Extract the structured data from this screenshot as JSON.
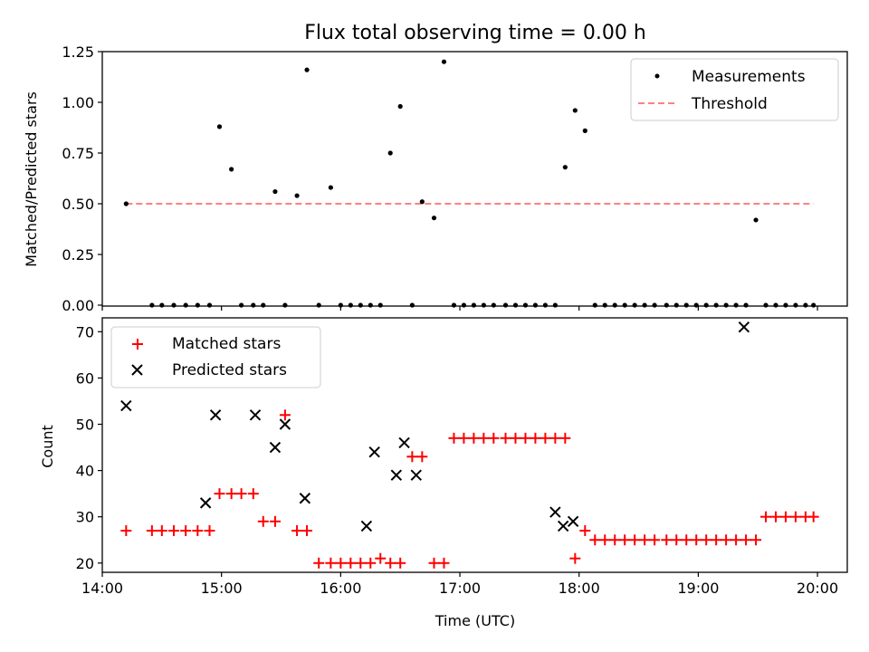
{
  "chart_data": [
    {
      "type": "scatter",
      "title": "Flux total observing time = 0.00 h",
      "xlabel": "",
      "ylabel": "Matched/Predicted stars",
      "ylim": [
        0,
        1.25
      ],
      "yticks": [
        "0.00",
        "0.25",
        "0.50",
        "0.75",
        "1.00",
        "1.25"
      ],
      "ytick_values": [
        0,
        0.25,
        0.5,
        0.75,
        1.0,
        1.25
      ],
      "legend": {
        "placement": "upper right"
      },
      "series": [
        {
          "name": "Measurements",
          "kind": "scatter",
          "color": "#000000",
          "x": [
            "14:12",
            "14:25",
            "14:30",
            "14:36",
            "14:42",
            "14:48",
            "14:54",
            "14:59",
            "15:05",
            "15:10",
            "15:16",
            "15:21",
            "15:27",
            "15:32",
            "15:38",
            "15:43",
            "15:49",
            "15:55",
            "16:00",
            "16:05",
            "16:10",
            "16:15",
            "16:20",
            "16:25",
            "16:30",
            "16:36",
            "16:41",
            "16:47",
            "16:52",
            "16:57",
            "17:02",
            "17:07",
            "17:12",
            "17:17",
            "17:23",
            "17:28",
            "17:33",
            "17:38",
            "17:43",
            "17:48",
            "17:53",
            "17:58",
            "18:03",
            "18:08",
            "18:13",
            "18:18",
            "18:23",
            "18:28",
            "18:33",
            "18:38",
            "18:44",
            "18:49",
            "18:54",
            "18:59",
            "19:04",
            "19:09",
            "19:14",
            "19:19",
            "19:24",
            "19:29",
            "19:34",
            "19:39",
            "19:44",
            "19:49",
            "19:54",
            "19:58"
          ],
          "y": [
            0.5,
            0.0,
            0.0,
            0.0,
            0.0,
            0.0,
            0.0,
            0.88,
            0.67,
            0.0,
            0.0,
            0.0,
            0.56,
            0.0,
            0.54,
            1.16,
            0.0,
            0.58,
            0.0,
            0.0,
            0.0,
            0.0,
            0.0,
            0.75,
            0.98,
            0.0,
            0.51,
            0.43,
            1.2,
            0.0,
            0.0,
            0.0,
            0.0,
            0.0,
            0.0,
            0.0,
            0.0,
            0.0,
            0.0,
            0.0,
            0.68,
            0.96,
            0.86,
            0.0,
            0.0,
            0.0,
            0.0,
            0.0,
            0.0,
            0.0,
            0.0,
            0.0,
            0.0,
            0.0,
            0.0,
            0.0,
            0.0,
            0.0,
            0.0,
            0.42,
            0.0,
            0.0,
            0.0,
            0.0,
            0.0,
            0.0
          ]
        },
        {
          "name": "Threshold",
          "kind": "line",
          "style": "dashed",
          "color": "#ff8080",
          "x": [
            "14:12",
            "19:58"
          ],
          "y": [
            0.5,
            0.5
          ]
        }
      ]
    },
    {
      "type": "scatter",
      "title": "",
      "xlabel": "Time (UTC)",
      "ylabel": "Count",
      "ylim": [
        18,
        73
      ],
      "yticks": [
        "20",
        "30",
        "40",
        "50",
        "60",
        "70"
      ],
      "ytick_values": [
        20,
        30,
        40,
        50,
        60,
        70
      ],
      "xlim": [
        "14:00",
        "20:15"
      ],
      "xticks": [
        "14:00",
        "15:00",
        "16:00",
        "17:00",
        "18:00",
        "19:00",
        "20:00"
      ],
      "legend": {
        "placement": "upper left"
      },
      "series": [
        {
          "name": "Matched stars",
          "marker": "+",
          "color": "#ff0000",
          "points": [
            [
              "14:12",
              27
            ],
            [
              "14:25",
              27
            ],
            [
              "14:30",
              27
            ],
            [
              "14:36",
              27
            ],
            [
              "14:42",
              27
            ],
            [
              "14:48",
              27
            ],
            [
              "14:54",
              27
            ],
            [
              "14:59",
              35
            ],
            [
              "15:05",
              35
            ],
            [
              "15:10",
              35
            ],
            [
              "15:16",
              35
            ],
            [
              "15:21",
              29
            ],
            [
              "15:27",
              29
            ],
            [
              "15:32",
              52
            ],
            [
              "15:38",
              27
            ],
            [
              "15:43",
              27
            ],
            [
              "15:49",
              20
            ],
            [
              "15:55",
              20
            ],
            [
              "16:00",
              20
            ],
            [
              "16:05",
              20
            ],
            [
              "16:10",
              20
            ],
            [
              "16:15",
              20
            ],
            [
              "16:20",
              21
            ],
            [
              "16:25",
              20
            ],
            [
              "16:30",
              20
            ],
            [
              "16:36",
              43
            ],
            [
              "16:41",
              43
            ],
            [
              "16:47",
              20
            ],
            [
              "16:52",
              20
            ],
            [
              "16:57",
              47
            ],
            [
              "17:02",
              47
            ],
            [
              "17:07",
              47
            ],
            [
              "17:12",
              47
            ],
            [
              "17:17",
              47
            ],
            [
              "17:23",
              47
            ],
            [
              "17:28",
              47
            ],
            [
              "17:33",
              47
            ],
            [
              "17:38",
              47
            ],
            [
              "17:43",
              47
            ],
            [
              "17:48",
              47
            ],
            [
              "17:53",
              47
            ],
            [
              "17:58",
              21
            ],
            [
              "18:03",
              27
            ],
            [
              "18:08",
              25
            ],
            [
              "18:13",
              25
            ],
            [
              "18:18",
              25
            ],
            [
              "18:23",
              25
            ],
            [
              "18:28",
              25
            ],
            [
              "18:33",
              25
            ],
            [
              "18:38",
              25
            ],
            [
              "18:44",
              25
            ],
            [
              "18:49",
              25
            ],
            [
              "18:54",
              25
            ],
            [
              "18:59",
              25
            ],
            [
              "19:04",
              25
            ],
            [
              "19:09",
              25
            ],
            [
              "19:14",
              25
            ],
            [
              "19:19",
              25
            ],
            [
              "19:24",
              25
            ],
            [
              "19:29",
              25
            ],
            [
              "19:34",
              30
            ],
            [
              "19:39",
              30
            ],
            [
              "19:44",
              30
            ],
            [
              "19:49",
              30
            ],
            [
              "19:54",
              30
            ],
            [
              "19:58",
              30
            ]
          ]
        },
        {
          "name": "Predicted stars",
          "marker": "x",
          "color": "#000000",
          "points": [
            [
              "14:12",
              54
            ],
            [
              "14:52",
              33
            ],
            [
              "14:57",
              52
            ],
            [
              "15:17",
              52
            ],
            [
              "15:27",
              45
            ],
            [
              "15:32",
              50
            ],
            [
              "15:42",
              34
            ],
            [
              "16:13",
              28
            ],
            [
              "16:17",
              44
            ],
            [
              "16:28",
              39
            ],
            [
              "16:32",
              46
            ],
            [
              "16:38",
              39
            ],
            [
              "17:48",
              31
            ],
            [
              "17:52",
              28
            ],
            [
              "17:57",
              29
            ],
            [
              "19:23",
              71
            ]
          ]
        }
      ]
    }
  ]
}
